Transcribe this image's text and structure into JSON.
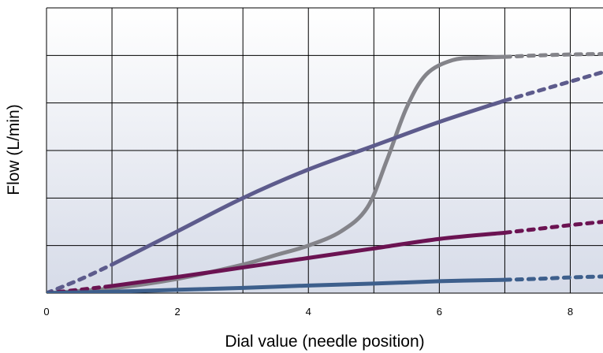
{
  "chart_data": {
    "type": "line",
    "title": "",
    "xlabel": "Dial value (needle position)",
    "ylabel": "Flow (L/min)",
    "xlim": [
      0,
      8.5
    ],
    "ylim": [
      0,
      6
    ],
    "x_ticks": [
      0,
      2,
      4,
      6,
      8
    ],
    "x_tick_labels": [
      "0",
      "2",
      "4",
      "6",
      "8"
    ],
    "y_tick_labels": [],
    "grid": true,
    "legend": "none",
    "background_gradient": [
      "#ffffff",
      "#d6dbe8"
    ],
    "series": [
      {
        "color": "#84848a",
        "x": [
          0,
          1,
          2,
          3,
          3.5,
          4,
          4.5,
          4.9,
          5.2,
          5.5,
          5.8,
          6.2,
          6.6,
          7.0
        ],
        "y": [
          0.0,
          0.1,
          0.3,
          0.6,
          0.8,
          1.0,
          1.3,
          1.8,
          2.8,
          3.9,
          4.6,
          4.9,
          4.95,
          4.97
        ],
        "dashed_extension": {
          "x": [
            7.0,
            7.5,
            8.0,
            8.5
          ],
          "y": [
            4.97,
            5.0,
            5.02,
            5.03
          ]
        }
      },
      {
        "color": "#5d5b8c",
        "x": [
          1,
          2,
          3,
          4,
          5,
          6,
          7.0
        ],
        "y": [
          0.6,
          1.3,
          2.0,
          2.6,
          3.1,
          3.6,
          4.05
        ],
        "dashed_extension": {
          "x": [
            0,
            0.5,
            1
          ],
          "y": [
            0.0,
            0.28,
            0.6
          ],
          "x2": [
            7.0,
            7.5,
            8.0,
            8.5
          ],
          "y2": [
            4.05,
            4.25,
            4.45,
            4.65
          ]
        }
      },
      {
        "color": "#6b1352",
        "x": [
          1,
          2,
          3,
          4,
          5,
          6,
          7.0
        ],
        "y": [
          0.15,
          0.34,
          0.54,
          0.74,
          0.94,
          1.14,
          1.27
        ],
        "dashed_extension": {
          "x": [
            0,
            0.5,
            1
          ],
          "y": [
            0.0,
            0.07,
            0.15
          ],
          "x2": [
            7.0,
            7.5,
            8.0,
            8.5
          ],
          "y2": [
            1.27,
            1.35,
            1.43,
            1.5
          ]
        }
      },
      {
        "color": "#3d5f8c",
        "x": [
          0,
          1,
          2,
          3,
          4,
          5,
          6,
          7.0
        ],
        "y": [
          0.0,
          0.03,
          0.07,
          0.11,
          0.16,
          0.2,
          0.25,
          0.28
        ],
        "dashed_extension": {
          "x": [
            7.0,
            7.5,
            8.0,
            8.5
          ],
          "y": [
            0.28,
            0.3,
            0.33,
            0.35
          ]
        }
      }
    ]
  }
}
